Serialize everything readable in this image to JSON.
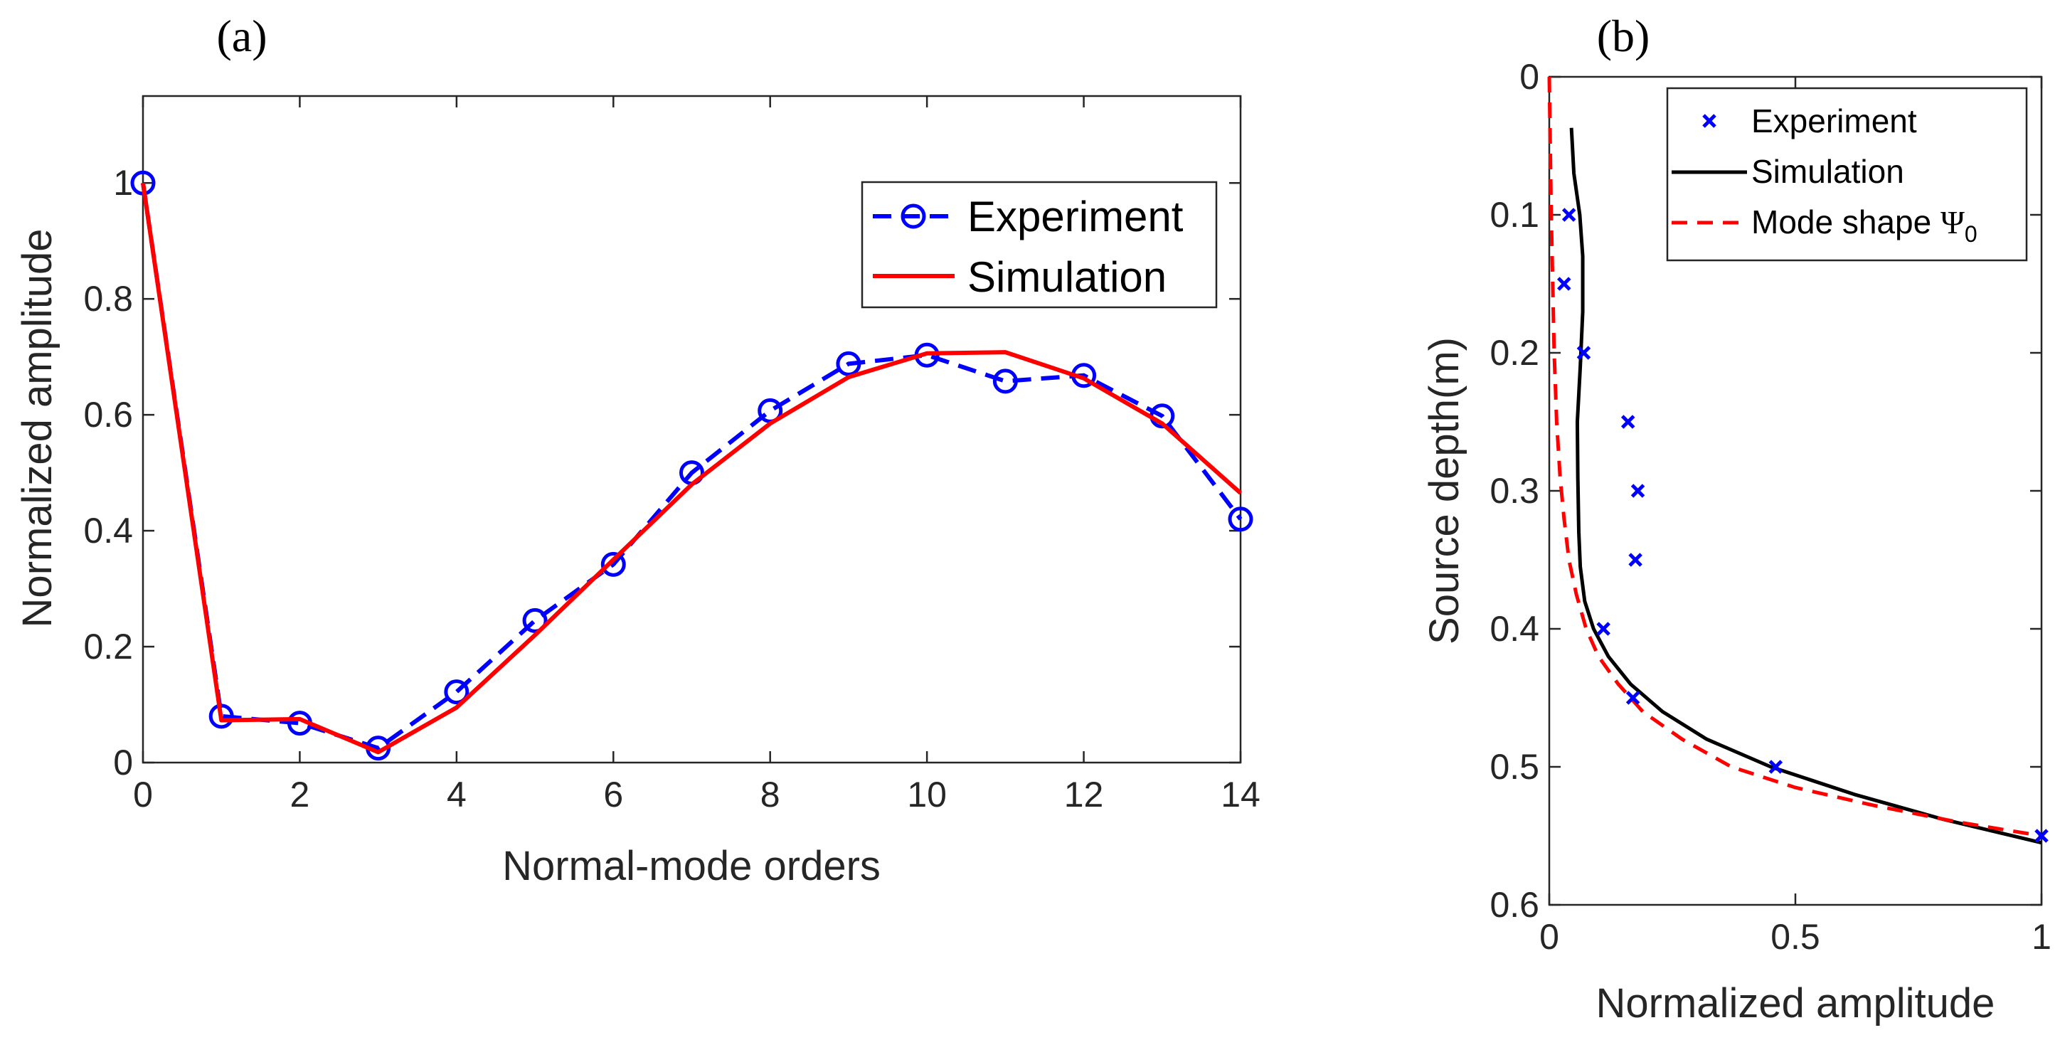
{
  "chart_data": [
    {
      "type": "line",
      "panel_label": "(a)",
      "xlabel": "Normal-mode orders",
      "ylabel": "Normalized amplitude",
      "xlim": [
        0,
        14
      ],
      "ylim": [
        0,
        1.15
      ],
      "xticks": [
        0,
        2,
        4,
        6,
        8,
        10,
        12,
        14
      ],
      "xtick_labels": [
        "0",
        "2",
        "4",
        "6",
        "8",
        "10",
        "12",
        "14"
      ],
      "yticks": [
        0,
        0.2,
        0.4,
        0.6,
        0.8,
        1
      ],
      "ytick_labels": [
        "0",
        "0.2",
        "0.4",
        "0.6",
        "0.8",
        "1"
      ],
      "legend": "top-right",
      "series": [
        {
          "name": "Experiment",
          "style": "dashed-circle",
          "color": "#0000ff",
          "x": [
            0,
            1,
            2,
            3,
            4,
            5,
            6,
            7,
            8,
            9,
            10,
            11,
            12,
            13,
            14
          ],
          "y": [
            1.0,
            0.08,
            0.068,
            0.025,
            0.122,
            0.245,
            0.342,
            0.5,
            0.607,
            0.688,
            0.703,
            0.658,
            0.668,
            0.598,
            0.42
          ]
        },
        {
          "name": "Simulation",
          "style": "solid",
          "color": "#ff0000",
          "x": [
            0,
            1,
            2,
            3,
            4,
            5,
            6,
            7,
            8,
            9,
            10,
            11,
            12,
            13,
            14
          ],
          "y": [
            1.0,
            0.073,
            0.075,
            0.018,
            0.095,
            0.22,
            0.35,
            0.48,
            0.585,
            0.665,
            0.706,
            0.708,
            0.663,
            0.585,
            0.465
          ]
        }
      ]
    },
    {
      "type": "scatter",
      "panel_label": "(b)",
      "xlabel": "Normalized amplitude",
      "ylabel": "Source depth(m)",
      "xlim": [
        0,
        1
      ],
      "ylim": [
        0,
        0.6
      ],
      "y_reversed": true,
      "xticks": [
        0,
        0.5,
        1
      ],
      "xtick_labels": [
        "0",
        "0.5",
        "1"
      ],
      "yticks": [
        0,
        0.1,
        0.2,
        0.3,
        0.4,
        0.5,
        0.6
      ],
      "ytick_labels": [
        "0",
        "0.1",
        "0.2",
        "0.3",
        "0.4",
        "0.5",
        "0.6"
      ],
      "legend": "top-right",
      "series": [
        {
          "name": "Experiment",
          "style": "x-marker",
          "color": "#0000ff",
          "x": [
            0.04,
            0.03,
            0.07,
            0.16,
            0.18,
            0.175,
            0.11,
            0.17,
            0.46,
            1.0
          ],
          "y": [
            0.1,
            0.15,
            0.2,
            0.25,
            0.3,
            0.35,
            0.4,
            0.45,
            0.5,
            0.55
          ]
        },
        {
          "name": "Simulation",
          "style": "solid",
          "color": "#000000",
          "x": [
            0.045,
            0.05,
            0.062,
            0.068,
            0.068,
            0.063,
            0.057,
            0.058,
            0.06,
            0.063,
            0.072,
            0.09,
            0.12,
            0.165,
            0.23,
            0.32,
            0.45,
            0.62,
            0.8,
            1.0
          ],
          "y": [
            0.037,
            0.07,
            0.1,
            0.13,
            0.17,
            0.21,
            0.25,
            0.29,
            0.33,
            0.355,
            0.38,
            0.4,
            0.42,
            0.44,
            0.46,
            0.48,
            0.5,
            0.52,
            0.538,
            0.555
          ]
        },
        {
          "name": "Mode shape Ψ0",
          "style": "dashed",
          "color": "#ff0000",
          "x": [
            0.0,
            0.002,
            0.004,
            0.007,
            0.01,
            0.015,
            0.022,
            0.03,
            0.04,
            0.055,
            0.075,
            0.1,
            0.14,
            0.19,
            0.27,
            0.37,
            0.5,
            0.66,
            0.83,
            1.0
          ],
          "y": [
            0.0,
            0.05,
            0.1,
            0.15,
            0.2,
            0.25,
            0.29,
            0.32,
            0.35,
            0.375,
            0.4,
            0.42,
            0.44,
            0.46,
            0.48,
            0.5,
            0.515,
            0.528,
            0.54,
            0.55
          ]
        }
      ]
    }
  ],
  "legend_b": {
    "experiment": "Experiment",
    "simulation": "Simulation",
    "mode_prefix": "Mode shape ",
    "mode_symbol": "Ψ",
    "mode_subscript": "0"
  }
}
